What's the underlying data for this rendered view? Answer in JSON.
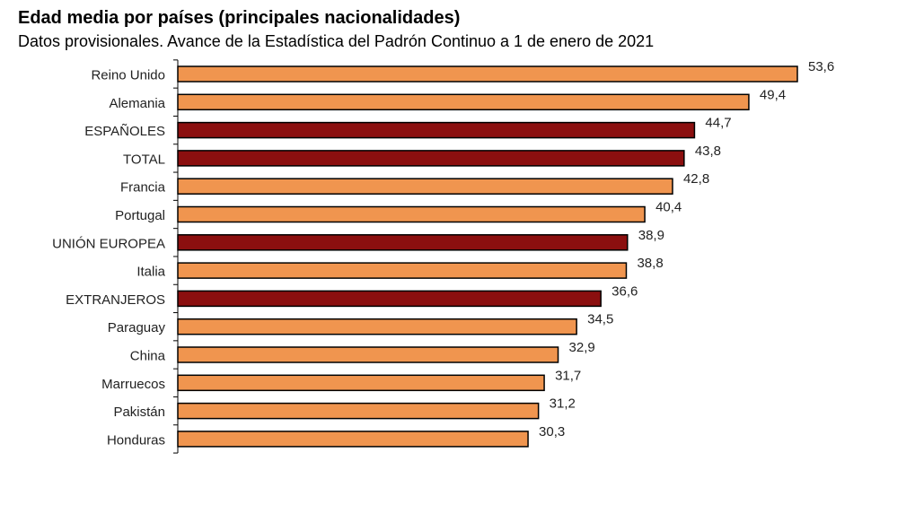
{
  "header": {
    "title": "Edad media por países (principales nacionalidades)",
    "subtitle": "Datos provisionales. Avance de la Estadística del Padrón Continuo a 1 de enero de 2021"
  },
  "colors": {
    "country_bar": "#F0954F",
    "aggregate_bar": "#8B0F0F",
    "bar_outline": "#000000"
  },
  "chart_data": {
    "type": "bar",
    "orientation": "horizontal",
    "title": "Edad media por países (principales nacionalidades)",
    "subtitle": "Datos provisionales. Avance de la Estadística del Padrón Continuo a 1 de enero de 2021",
    "categories": [
      "Reino Unido",
      "Alemania",
      "ESPAÑOLES",
      "TOTAL",
      "Francia",
      "Portugal",
      "UNIÓN EUROPEA",
      "Italia",
      "EXTRANJEROS",
      "Paraguay",
      "China",
      "Marruecos",
      "Pakistán",
      "Honduras"
    ],
    "values": [
      53.6,
      49.4,
      44.7,
      43.8,
      42.8,
      40.4,
      38.9,
      38.8,
      36.6,
      34.5,
      32.9,
      31.7,
      31.2,
      30.3
    ],
    "value_labels": [
      "53,6",
      "49,4",
      "44,7",
      "43,8",
      "42,8",
      "40,4",
      "38,9",
      "38,8",
      "36,6",
      "34,5",
      "32,9",
      "31,7",
      "31,2",
      "30,3"
    ],
    "highlighted": [
      false,
      false,
      true,
      true,
      false,
      false,
      true,
      false,
      true,
      false,
      false,
      false,
      false,
      false
    ],
    "xlim": [
      0,
      60
    ],
    "grid": false,
    "legend": "none"
  }
}
